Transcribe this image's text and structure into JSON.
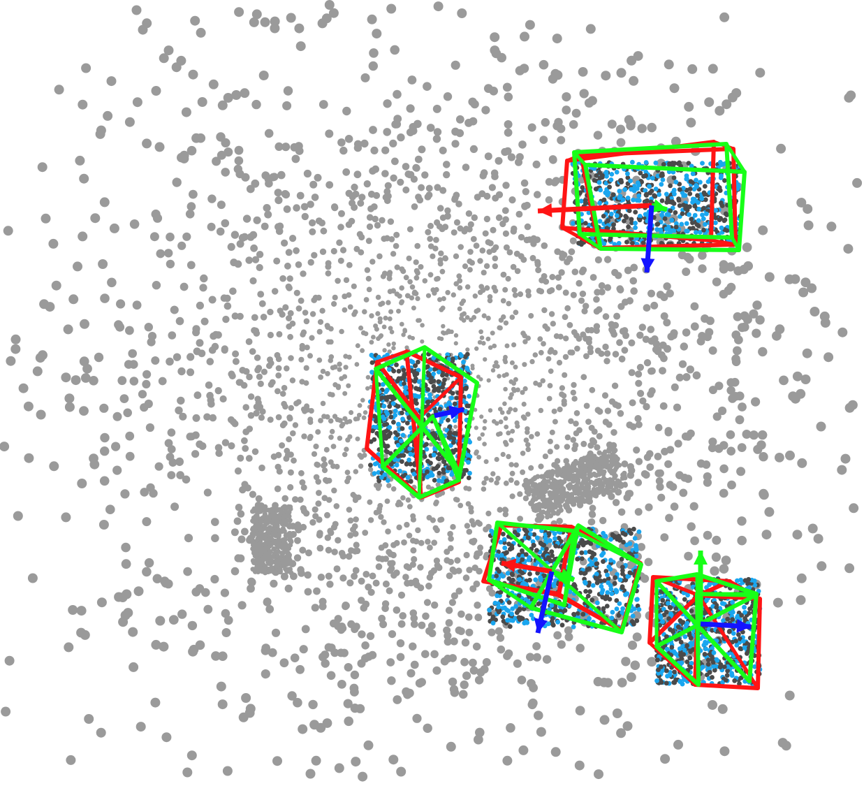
{
  "scene": {
    "background": "#ffffff",
    "point_color": "#9a9a9a",
    "object_point_color": "#4a4a4a",
    "object_highlight_color": "#1aa6ef",
    "bbox_a_color": "#ff1414",
    "bbox_b_color": "#18ff18",
    "axis_colors": {
      "x": "#ff1414",
      "y": "#18ff18",
      "z": "#1414ff"
    },
    "detected_objects": [
      {
        "name": "object-top-right",
        "boxes": 2,
        "axes": [
          "x",
          "y",
          "z"
        ]
      },
      {
        "name": "object-center",
        "boxes": 2,
        "axes": [
          "z"
        ]
      },
      {
        "name": "object-bottom-center",
        "boxes": 2,
        "axes": [
          "x",
          "y",
          "z"
        ]
      },
      {
        "name": "object-bottom-right",
        "boxes": 2,
        "axes": [
          "y",
          "z"
        ]
      }
    ],
    "undetected_clusters": [
      {
        "name": "cluster-left"
      },
      {
        "name": "cluster-mid-right"
      }
    ]
  }
}
